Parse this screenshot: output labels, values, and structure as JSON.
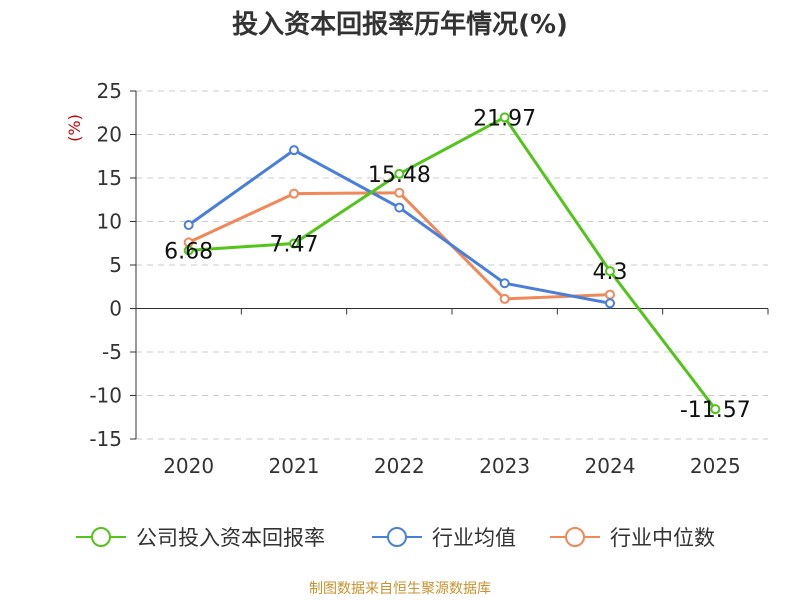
{
  "chart_data": {
    "type": "line",
    "title": "投入资本回报率历年情况(%)",
    "ylabel": "(%)",
    "xlabel": "",
    "categories": [
      "2020",
      "2021",
      "2022",
      "2023",
      "2024",
      "2025"
    ],
    "ylim": [
      -15,
      25
    ],
    "yticks": [
      -15,
      -10,
      -5,
      0,
      5,
      10,
      15,
      20,
      25
    ],
    "grid": true,
    "legend_position": "bottom",
    "series": [
      {
        "name": "公司投入资本回报率",
        "color": "#52c41a",
        "values": [
          6.68,
          7.47,
          15.48,
          21.97,
          4.3,
          -11.57
        ],
        "labels": [
          "6.68",
          "7.47",
          "15.48",
          "21.97",
          "4.3",
          "-11.57"
        ]
      },
      {
        "name": "行业均值",
        "color": "#4a7fd9",
        "values": [
          9.6,
          18.2,
          11.6,
          2.9,
          0.6,
          null
        ]
      },
      {
        "name": "行业中位数",
        "color": "#f0885a",
        "values": [
          7.6,
          13.2,
          13.3,
          1.1,
          1.6,
          null
        ]
      }
    ]
  },
  "source": "制图数据来自恒生聚源数据库"
}
